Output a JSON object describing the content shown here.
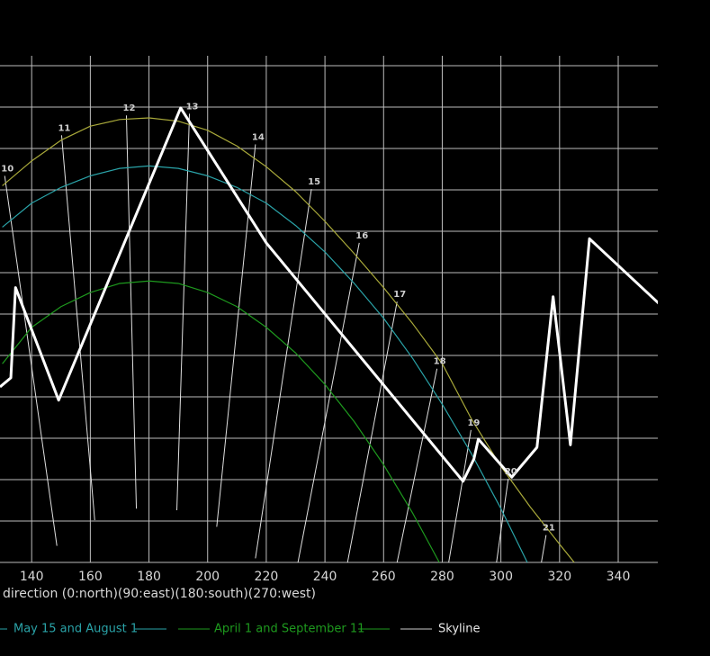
{
  "chart_data": {
    "type": "line",
    "x_label": "direction (0:north)(90:east)(180:south)(270:west)",
    "xlim": [
      129.2,
      353.5
    ],
    "ylim": [
      0,
      61.2
    ],
    "xticks": [
      140,
      160,
      180,
      200,
      220,
      240,
      260,
      280,
      300,
      320,
      340
    ],
    "yticks": [
      0,
      5,
      10,
      15,
      20,
      25,
      30,
      35,
      40,
      45,
      50,
      55,
      60
    ],
    "grid": true,
    "series": [
      {
        "color": "#a9a93a",
        "x": [
          130,
          140,
          150,
          160,
          170,
          180,
          190,
          200,
          210,
          220,
          230,
          240,
          250,
          260,
          270,
          280,
          290,
          300,
          310,
          320,
          325
        ],
        "values": [
          45.5,
          48.5,
          51,
          52.7,
          53.5,
          53.7,
          53.3,
          52.2,
          50.3,
          47.8,
          44.8,
          41.2,
          37.3,
          33.2,
          28.8,
          24,
          17.3,
          11.6,
          6.7,
          2.2,
          0
        ]
      },
      {
        "name": "May 15 and August 1",
        "color": "#2aa3a8",
        "x": [
          130,
          140,
          150,
          160,
          170,
          180,
          190,
          200,
          210,
          220,
          230,
          240,
          250,
          260,
          270,
          280,
          290,
          300,
          309
        ],
        "values": [
          40.5,
          43.4,
          45.3,
          46.7,
          47.6,
          47.9,
          47.6,
          46.7,
          45.3,
          43.4,
          40.7,
          37.5,
          33.7,
          29.5,
          24.6,
          19.1,
          13.1,
          6.5,
          0
        ]
      },
      {
        "name": "April 1 and September 11",
        "color": "#1e9a1e",
        "x": [
          130,
          140,
          150,
          160,
          170,
          180,
          190,
          200,
          210,
          220,
          230,
          240,
          250,
          260,
          270,
          279
        ],
        "values": [
          24,
          28.4,
          30.9,
          32.6,
          33.7,
          34,
          33.7,
          32.6,
          30.9,
          28.4,
          25.3,
          21.5,
          17,
          11.8,
          5.9,
          0
        ]
      },
      {
        "name": "Skyline",
        "color": "#ffffff",
        "line_width": 3,
        "x": [
          129.2,
          132.9,
          134.5,
          149.2,
          190.8,
          220,
          287.1,
          290.8,
          292.3,
          303.7,
          312.3,
          317.8,
          323.7,
          330.2,
          353.8
        ],
        "values": [
          21.2,
          22.3,
          33.2,
          19.6,
          54.9,
          38.6,
          9.8,
          12.5,
          14.9,
          10.3,
          13.9,
          32.1,
          14.2,
          39.1,
          31.3
        ]
      }
    ],
    "hour_lines": [
      {
        "label": "10",
        "x": [
          130.8,
          148.6
        ],
        "y": [
          46.7,
          2.0
        ]
      },
      {
        "label": "11",
        "x": [
          150.2,
          161.5
        ],
        "y": [
          51.6,
          5.1
        ]
      },
      {
        "label": "12",
        "x": [
          172.3,
          175.7
        ],
        "y": [
          54.0,
          6.5
        ]
      },
      {
        "label": "13",
        "x": [
          193.8,
          189.5
        ],
        "y": [
          54.2,
          6.3
        ]
      },
      {
        "label": "14",
        "x": [
          216.3,
          203.1
        ],
        "y": [
          50.5,
          4.3
        ]
      },
      {
        "label": "15",
        "x": [
          235.4,
          216.3
        ],
        "y": [
          45.1,
          0.5
        ]
      },
      {
        "label": "16",
        "x": [
          251.7,
          230.8
        ],
        "y": [
          38.6,
          0
        ]
      },
      {
        "label": "17",
        "x": [
          264.6,
          247.7
        ],
        "y": [
          31.5,
          0
        ]
      },
      {
        "label": "18",
        "x": [
          278.2,
          264.6
        ],
        "y": [
          23.4,
          0
        ]
      },
      {
        "label": "19",
        "x": [
          289.8,
          282.2
        ],
        "y": [
          16.0,
          0
        ]
      },
      {
        "label": "20",
        "x": [
          302.5,
          298.5
        ],
        "y": [
          10.1,
          0
        ]
      },
      {
        "label": "21",
        "x": [
          315.4,
          313.8
        ],
        "y": [
          3.3,
          0
        ]
      }
    ]
  }
}
